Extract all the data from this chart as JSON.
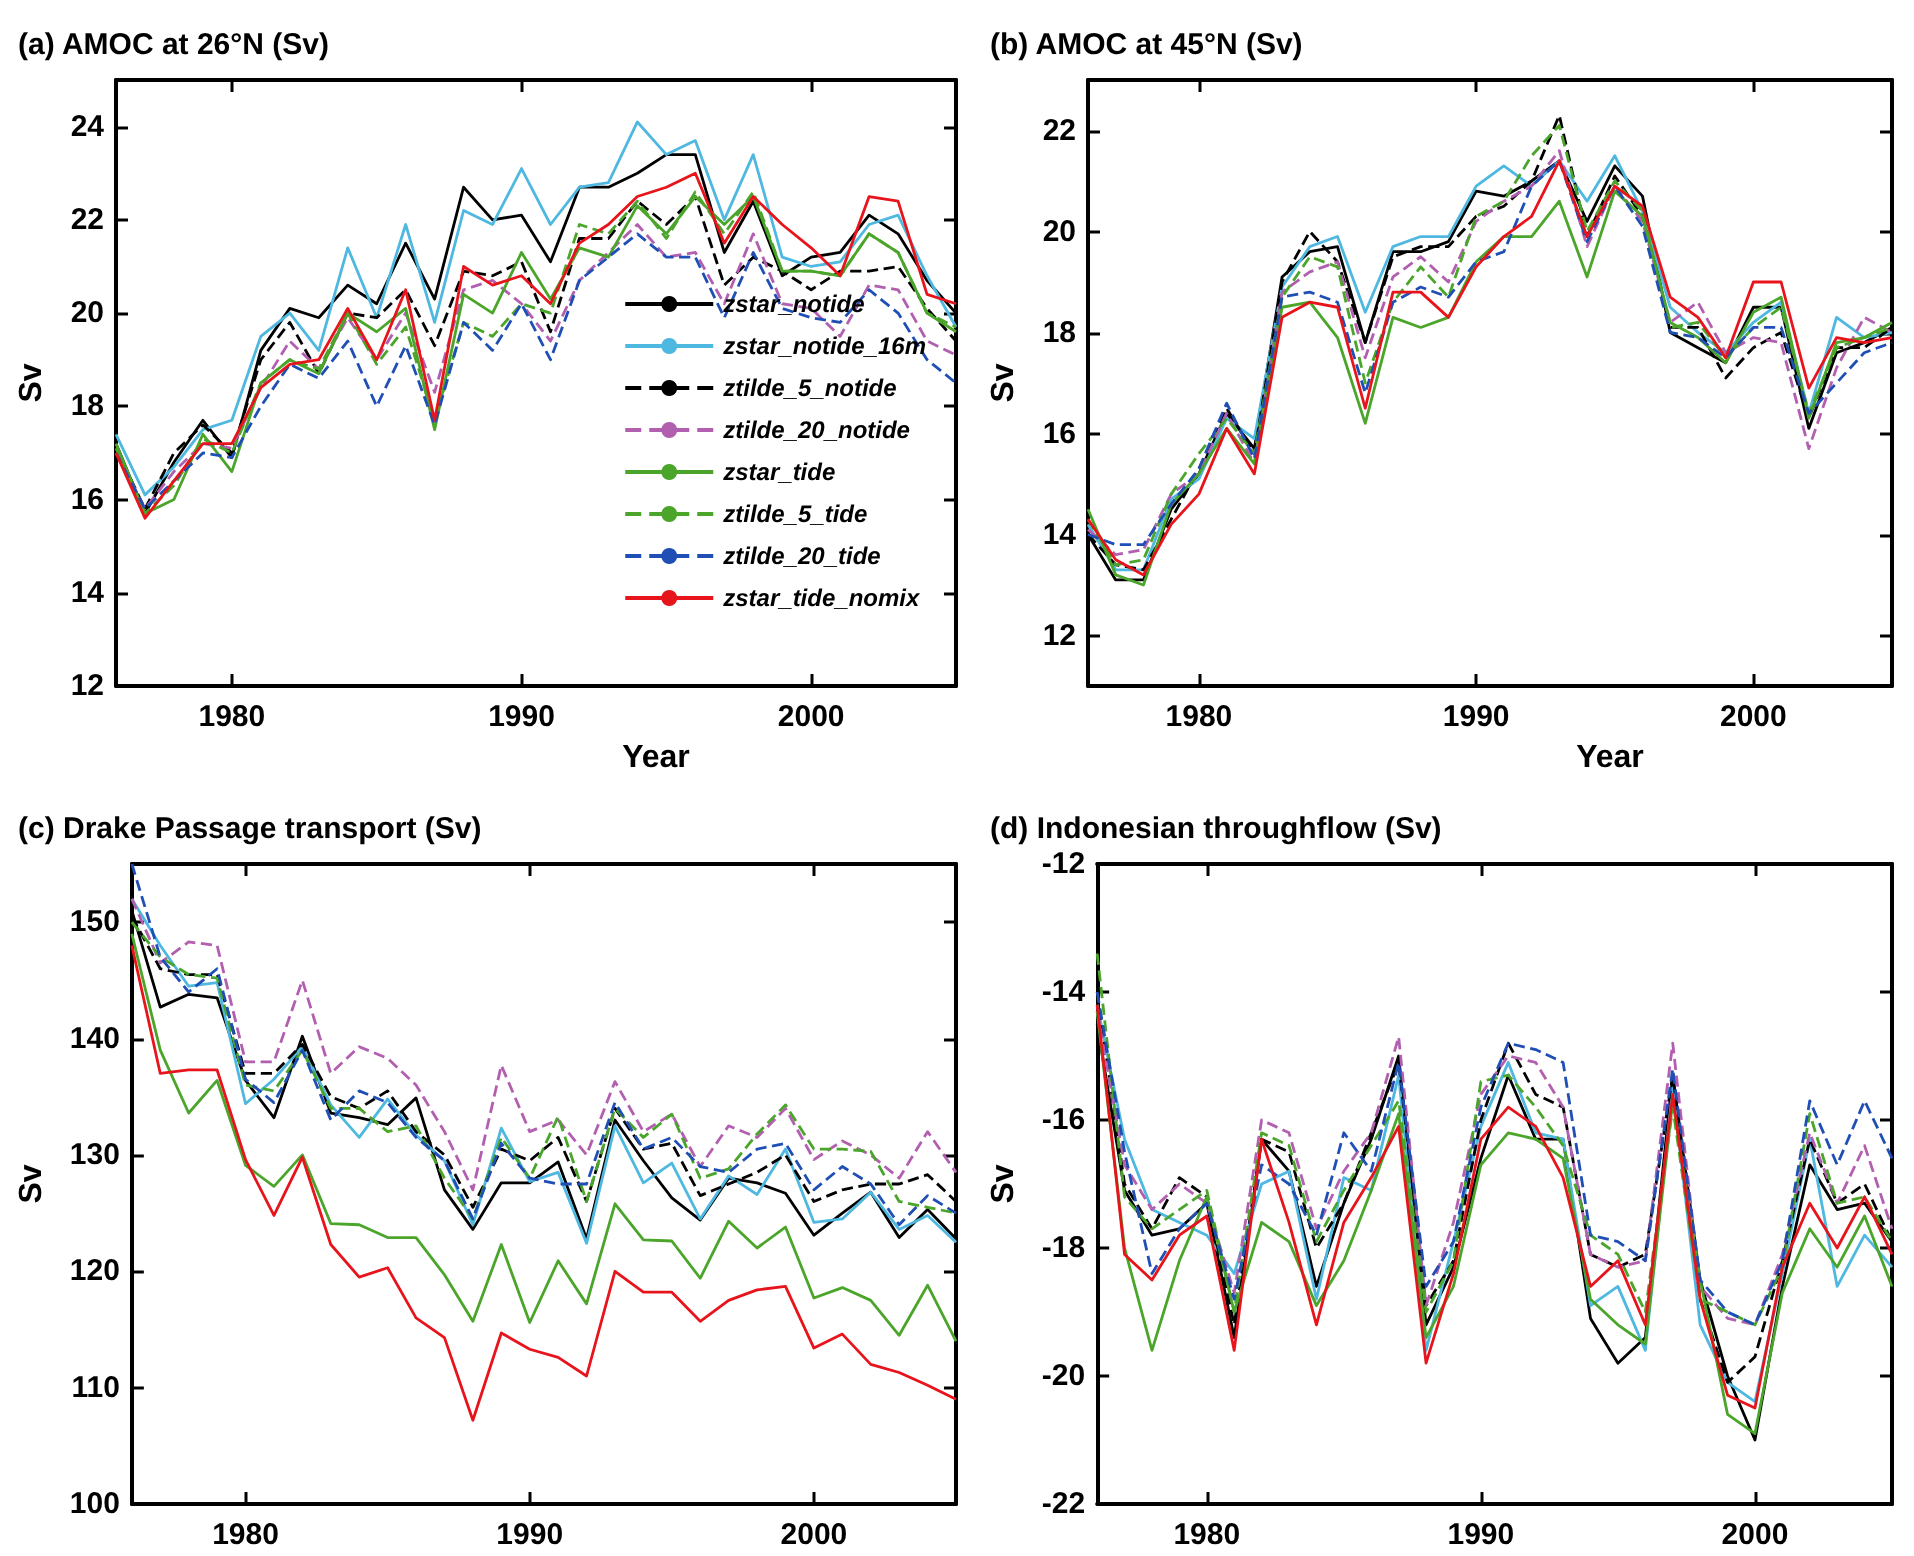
{
  "chart_data": [
    {
      "type": "line",
      "title": "(a) AMOC at 26°N (Sv)",
      "xlabel": "Year",
      "ylabel": "Sv",
      "x": [
        1976,
        1977,
        1978,
        1979,
        1980,
        1981,
        1982,
        1983,
        1984,
        1985,
        1986,
        1987,
        1988,
        1989,
        1990,
        1991,
        1992,
        1993,
        1994,
        1995,
        1996,
        1997,
        1998,
        1999,
        2000,
        2001,
        2002,
        2003,
        2004,
        2005
      ],
      "xlim": [
        1976,
        2005
      ],
      "xticks": [
        1980,
        1990,
        2000
      ],
      "ylim": [
        12,
        25
      ],
      "yticks": [
        12,
        14,
        16,
        18,
        20,
        22,
        24
      ],
      "marker": "none",
      "legend": "bottom right",
      "series": [
        {
          "name": "zstar_notide",
          "color": "#000000",
          "values": [
            17.2,
            15.7,
            16.8,
            17.7,
            16.9,
            19.2,
            20.1,
            19.9,
            20.6,
            20.2,
            21.5,
            20.3,
            22.7,
            22.0,
            22.1,
            21.1,
            22.7,
            22.7,
            23.0,
            23.4,
            23.4,
            21.3,
            22.4,
            20.8,
            21.2,
            21.3,
            22.1,
            21.7,
            20.7,
            20.0
          ]
        },
        {
          "name": "zstar_notide_16m",
          "color": "#4fb8e0",
          "values": [
            17.4,
            16.1,
            16.7,
            17.5,
            17.7,
            19.5,
            20.0,
            19.2,
            21.4,
            19.9,
            21.9,
            19.8,
            22.2,
            21.9,
            23.1,
            21.9,
            22.7,
            22.8,
            24.1,
            23.4,
            23.7,
            22.0,
            23.4,
            21.2,
            21.0,
            21.1,
            21.9,
            22.1,
            20.8,
            19.7
          ]
        },
        {
          "name": "ztilde_5_notide",
          "color": "#000000",
          "line_style": "dashed",
          "values": [
            17.1,
            15.8,
            17.0,
            17.6,
            17.0,
            19.0,
            19.8,
            18.7,
            20.0,
            19.9,
            20.5,
            19.3,
            20.9,
            20.8,
            21.1,
            19.6,
            21.6,
            21.6,
            22.4,
            21.9,
            22.5,
            20.6,
            21.2,
            20.9,
            20.5,
            20.9,
            20.9,
            21.0,
            20.1,
            19.4
          ]
        },
        {
          "name": "ztilde_20_notide",
          "color": "#b25fb0",
          "line_style": "dashed",
          "values": [
            17.0,
            15.8,
            16.6,
            17.2,
            17.1,
            18.4,
            19.4,
            18.8,
            19.9,
            19.0,
            20.0,
            18.3,
            20.5,
            20.7,
            20.2,
            19.4,
            20.7,
            21.3,
            21.9,
            21.2,
            21.3,
            20.2,
            21.7,
            20.2,
            20.1,
            19.5,
            20.6,
            20.5,
            19.4,
            19.1
          ]
        },
        {
          "name": "zstar_tide",
          "color": "#4aa52a",
          "values": [
            17.2,
            15.7,
            16.0,
            17.4,
            16.6,
            18.5,
            19.0,
            18.7,
            20.0,
            19.6,
            20.1,
            17.5,
            20.4,
            20.0,
            21.3,
            20.3,
            21.4,
            21.2,
            22.3,
            21.7,
            22.5,
            21.9,
            22.5,
            20.9,
            20.9,
            20.8,
            21.7,
            21.3,
            20.0,
            19.6
          ]
        },
        {
          "name": "ztilde_5_tide",
          "color": "#4aa52a",
          "line_style": "dashed",
          "values": [
            17.1,
            15.7,
            16.3,
            17.3,
            17.0,
            18.5,
            19.0,
            18.8,
            20.0,
            18.9,
            19.7,
            17.7,
            19.8,
            19.5,
            20.2,
            20.0,
            21.9,
            21.7,
            22.4,
            21.6,
            22.6,
            21.7,
            22.6,
            20.9,
            20.9,
            20.8,
            21.7,
            21.3,
            20.0,
            19.7
          ]
        },
        {
          "name": "ztilde_20_tide",
          "color": "#1f4fb5",
          "line_style": "dashed",
          "values": [
            17.0,
            15.8,
            16.4,
            17.0,
            16.9,
            18.0,
            18.9,
            18.6,
            19.4,
            18.0,
            19.3,
            17.6,
            19.8,
            19.2,
            20.2,
            19.0,
            20.7,
            21.2,
            21.7,
            21.2,
            21.2,
            19.9,
            21.3,
            20.1,
            19.9,
            19.8,
            20.5,
            20.0,
            19.0,
            18.5
          ]
        },
        {
          "name": "zstar_tide_nomix",
          "color": "#e8141c",
          "values": [
            17.0,
            15.6,
            16.4,
            17.2,
            17.2,
            18.4,
            18.9,
            19.0,
            20.1,
            19.0,
            20.5,
            17.7,
            21.0,
            20.6,
            20.8,
            20.2,
            21.5,
            21.9,
            22.5,
            22.7,
            23.0,
            21.5,
            22.5,
            21.9,
            21.4,
            20.8,
            22.5,
            22.4,
            20.4,
            20.2
          ]
        }
      ]
    },
    {
      "type": "line",
      "title": "(b) AMOC at 45°N (Sv)",
      "xlabel": "Year",
      "ylabel": "Sv",
      "x": [
        1976,
        1977,
        1978,
        1979,
        1980,
        1981,
        1982,
        1983,
        1984,
        1985,
        1986,
        1987,
        1988,
        1989,
        1990,
        1991,
        1992,
        1993,
        1994,
        1995,
        1996,
        1997,
        1998,
        1999,
        2000,
        2001,
        2002,
        2003,
        2004,
        2005
      ],
      "xlim": [
        1976,
        2005
      ],
      "xticks": [
        1980,
        1990,
        2000
      ],
      "ylim": [
        11,
        23
      ],
      "yticks": [
        12,
        14,
        16,
        18,
        20,
        22
      ],
      "marker": "none",
      "series": [
        {
          "color": "#000000",
          "values": [
            14.0,
            13.1,
            13.1,
            14.5,
            15.2,
            16.4,
            15.7,
            19.1,
            19.6,
            19.7,
            17.8,
            19.6,
            19.6,
            19.8,
            20.8,
            20.7,
            21.0,
            21.4,
            20.2,
            21.3,
            20.7,
            18.0,
            17.7,
            17.4,
            18.5,
            18.5,
            16.1,
            17.6,
            17.8,
            18.1
          ]
        },
        {
          "color": "#4fb8e0",
          "values": [
            14.2,
            13.3,
            13.3,
            14.7,
            15.1,
            16.3,
            15.9,
            18.9,
            19.7,
            19.9,
            18.4,
            19.7,
            19.9,
            19.9,
            20.9,
            21.3,
            20.9,
            21.4,
            20.6,
            21.5,
            20.4,
            18.5,
            18.0,
            17.6,
            18.2,
            18.6,
            16.4,
            18.3,
            17.9,
            18.0
          ]
        },
        {
          "color": "#000000",
          "line_style": "dashed",
          "values": [
            14.0,
            13.4,
            13.3,
            14.3,
            15.3,
            16.5,
            15.6,
            19.0,
            20.0,
            19.4,
            17.8,
            19.5,
            19.7,
            19.7,
            20.3,
            20.5,
            21.0,
            22.3,
            19.9,
            21.1,
            20.3,
            18.1,
            18.1,
            17.1,
            17.7,
            18.0,
            16.3,
            17.7,
            17.7,
            18.1
          ]
        },
        {
          "color": "#b25fb0",
          "line_style": "dashed",
          "values": [
            14.1,
            13.6,
            13.7,
            14.8,
            15.2,
            16.4,
            15.4,
            18.8,
            19.2,
            19.4,
            17.5,
            19.1,
            19.5,
            19.0,
            20.2,
            20.6,
            20.9,
            21.6,
            19.7,
            20.9,
            20.2,
            18.2,
            18.6,
            17.6,
            17.9,
            17.8,
            15.7,
            17.3,
            18.3,
            18.0
          ]
        },
        {
          "color": "#4aa52a",
          "values": [
            14.5,
            13.2,
            13.0,
            14.6,
            15.2,
            16.1,
            15.4,
            18.5,
            18.6,
            17.9,
            16.2,
            18.3,
            18.1,
            18.3,
            19.4,
            19.9,
            19.9,
            20.6,
            19.1,
            20.8,
            20.3,
            18.2,
            17.9,
            17.4,
            18.4,
            18.7,
            16.3,
            17.8,
            17.9,
            18.2
          ]
        },
        {
          "color": "#4aa52a",
          "line_style": "dashed",
          "values": [
            14.3,
            13.4,
            13.5,
            14.8,
            15.6,
            16.3,
            15.6,
            18.7,
            19.5,
            19.3,
            17.0,
            18.6,
            19.3,
            18.7,
            20.3,
            20.6,
            21.5,
            22.1,
            20.0,
            21.0,
            20.4,
            18.1,
            18.2,
            17.5,
            18.1,
            18.5,
            16.4,
            17.7,
            17.9,
            18.1
          ]
        },
        {
          "color": "#1f4fb5",
          "line_style": "dashed",
          "values": [
            14.0,
            13.8,
            13.8,
            14.6,
            15.3,
            16.6,
            15.5,
            18.7,
            18.8,
            18.6,
            16.8,
            18.6,
            18.9,
            18.7,
            19.4,
            19.6,
            20.9,
            21.4,
            19.8,
            20.9,
            20.1,
            18.0,
            17.9,
            17.5,
            18.1,
            18.1,
            16.4,
            17.0,
            17.6,
            17.8
          ]
        },
        {
          "color": "#e8141c",
          "values": [
            14.3,
            13.5,
            13.2,
            14.2,
            14.8,
            16.1,
            15.2,
            18.3,
            18.6,
            18.5,
            16.5,
            18.8,
            18.8,
            18.3,
            19.3,
            19.9,
            20.3,
            21.4,
            19.9,
            20.9,
            20.5,
            18.7,
            18.3,
            17.5,
            19.0,
            19.0,
            16.9,
            17.9,
            17.8,
            17.9
          ]
        }
      ]
    },
    {
      "type": "line",
      "title": "(c) Drake Passage transport (Sv)",
      "ylabel": "Sv",
      "x": [
        1976,
        1977,
        1978,
        1979,
        1980,
        1981,
        1982,
        1983,
        1984,
        1985,
        1986,
        1987,
        1988,
        1989,
        1990,
        1991,
        1992,
        1993,
        1994,
        1995,
        1996,
        1997,
        1998,
        1999,
        2000,
        2001,
        2002,
        2003,
        2004,
        2005
      ],
      "xlim": [
        1976,
        2005
      ],
      "xticks": [
        1980,
        1990,
        2000
      ],
      "ylim": [
        100,
        155
      ],
      "yticks": [
        100,
        110,
        120,
        130,
        140,
        150
      ],
      "marker": "none",
      "series": [
        {
          "color": "#000000",
          "values": [
            151,
            142.7,
            143.8,
            143.5,
            136.4,
            133.2,
            140.2,
            133.6,
            133.2,
            132.6,
            134.9,
            127,
            123.6,
            127.6,
            127.6,
            129.4,
            122.8,
            133,
            129.5,
            126.3,
            124.4,
            128,
            127.6,
            126.7,
            123.1,
            125,
            126.8,
            122.9,
            125.3,
            122.8
          ]
        },
        {
          "color": "#4fb8e0",
          "values": [
            152,
            148,
            144.5,
            144.8,
            134.4,
            136.5,
            139.3,
            134.3,
            131.5,
            134.8,
            131.7,
            129.5,
            124,
            132.3,
            127.7,
            128.5,
            122.4,
            132.5,
            127.6,
            129.3,
            124.5,
            128.2,
            126.6,
            130.5,
            124.2,
            124.5,
            126.8,
            123.6,
            124.8,
            122.5
          ]
        },
        {
          "color": "#000000",
          "line_style": "dashed",
          "values": [
            150.5,
            146,
            145.5,
            145.5,
            137,
            137,
            139.5,
            135,
            134,
            135.5,
            132,
            130,
            125.5,
            130.5,
            129.5,
            131.5,
            126,
            134,
            130.5,
            131,
            126.5,
            127.5,
            128.5,
            130,
            126,
            127,
            127.5,
            127.5,
            128.3,
            126
          ]
        },
        {
          "color": "#b25fb0",
          "line_style": "dashed",
          "values": [
            152,
            146.5,
            148.3,
            148,
            138,
            138,
            145,
            137,
            139.3,
            138.3,
            136,
            132,
            127,
            137.7,
            132,
            133,
            130,
            136.3,
            132,
            133.5,
            129,
            132.5,
            131.5,
            134,
            129.6,
            131.2,
            130,
            128,
            132,
            128.5
          ]
        },
        {
          "color": "#4aa52a",
          "values": [
            149,
            139,
            133.6,
            136.4,
            129.1,
            127.3,
            130,
            124.1,
            124,
            122.9,
            122.9,
            119.7,
            115.7,
            122.3,
            115.6,
            120.9,
            117.2,
            125.8,
            122.7,
            122.6,
            119.4,
            124.3,
            122,
            123.8,
            117.7,
            118.6,
            117.5,
            114.5,
            118.8,
            114
          ]
        },
        {
          "color": "#4aa52a",
          "line_style": "dashed",
          "values": [
            150,
            147,
            145.5,
            145.2,
            136,
            135.5,
            139,
            134,
            134,
            132,
            132.5,
            128,
            124.5,
            131.5,
            128,
            133.3,
            126,
            134,
            131.5,
            133.5,
            128,
            128.8,
            131.8,
            134.3,
            130.5,
            130.5,
            130.3,
            126,
            125.5,
            125
          ]
        },
        {
          "color": "#1f4fb5",
          "line_style": "dashed",
          "values": [
            155,
            147,
            144,
            146,
            136.5,
            134.5,
            139,
            133,
            135.5,
            134.5,
            131.5,
            129.5,
            124.5,
            131,
            128,
            127.5,
            127.5,
            134.5,
            130.5,
            131.5,
            129,
            128.5,
            130.5,
            131,
            127,
            129,
            127.5,
            124,
            126.5,
            125
          ]
        },
        {
          "color": "#e8141c",
          "values": [
            148,
            137,
            137.3,
            137.3,
            129.6,
            124.8,
            129.8,
            122.3,
            119.5,
            120.3,
            116,
            114.3,
            107.2,
            114.7,
            113.3,
            112.6,
            111,
            120,
            118.2,
            118.2,
            115.7,
            117.5,
            118.4,
            118.7,
            113.4,
            114.6,
            112,
            111.3,
            110.2,
            109
          ]
        }
      ]
    },
    {
      "type": "line",
      "title": "(d) Indonesian throughflow (Sv)",
      "ylabel": "Sv",
      "x": [
        1976,
        1977,
        1978,
        1979,
        1980,
        1981,
        1982,
        1983,
        1984,
        1985,
        1986,
        1987,
        1988,
        1989,
        1990,
        1991,
        1992,
        1993,
        1994,
        1995,
        1996,
        1997,
        1998,
        1999,
        2000,
        2001,
        2002,
        2003,
        2004,
        2005
      ],
      "xlim": [
        1976,
        2005
      ],
      "xticks": [
        1980,
        1990,
        2000
      ],
      "ylim": [
        -22,
        -12
      ],
      "yticks": [
        -22,
        -20,
        -18,
        -16,
        -14,
        -12
      ],
      "marker": "none",
      "series": [
        {
          "color": "#000000",
          "values": [
            -14.5,
            -17.1,
            -17.8,
            -17.7,
            -17.3,
            -19.4,
            -16.3,
            -16.8,
            -18.6,
            -17.3,
            -16.3,
            -15.0,
            -19.2,
            -18.3,
            -16.6,
            -15.3,
            -16.3,
            -16.3,
            -19.1,
            -19.8,
            -19.4,
            -15.3,
            -18.5,
            -20.0,
            -21.0,
            -18.6,
            -16.7,
            -17.4,
            -17.3,
            -17.9
          ]
        },
        {
          "color": "#4fb8e0",
          "values": [
            -14.2,
            -16.3,
            -17.4,
            -17.6,
            -17.8,
            -18.4,
            -17.0,
            -16.8,
            -18.8,
            -16.9,
            -17.1,
            -15.3,
            -19.6,
            -17.9,
            -16.1,
            -15.1,
            -16.2,
            -16.3,
            -18.9,
            -18.6,
            -19.6,
            -15.5,
            -19.2,
            -20.1,
            -20.4,
            -18.4,
            -16.3,
            -18.6,
            -17.8,
            -18.3
          ]
        },
        {
          "color": "#000000",
          "line_style": "dashed",
          "values": [
            -14.0,
            -17.0,
            -17.7,
            -16.9,
            -17.2,
            -19.2,
            -16.3,
            -16.5,
            -18.0,
            -17.3,
            -16.2,
            -15.1,
            -18.9,
            -18.2,
            -16.0,
            -14.8,
            -15.6,
            -15.8,
            -18.1,
            -18.3,
            -18.1,
            -15.3,
            -18.8,
            -20.1,
            -19.7,
            -18.2,
            -16.3,
            -17.3,
            -17.0,
            -17.9
          ]
        },
        {
          "color": "#b25fb0",
          "line_style": "dashed",
          "values": [
            -14.3,
            -16.7,
            -17.4,
            -17.0,
            -17.3,
            -18.7,
            -16.0,
            -16.2,
            -17.7,
            -16.8,
            -16.2,
            -14.7,
            -18.9,
            -17.6,
            -15.6,
            -15.0,
            -15.1,
            -15.8,
            -18.1,
            -18.3,
            -18.2,
            -14.8,
            -18.6,
            -19.1,
            -19.2,
            -18.1,
            -16.2,
            -17.3,
            -16.4,
            -17.7
          ]
        },
        {
          "color": "#4aa52a",
          "values": [
            -14.3,
            -18.0,
            -19.6,
            -18.2,
            -17.2,
            -19.0,
            -17.6,
            -17.9,
            -18.9,
            -18.2,
            -17.1,
            -15.9,
            -19.4,
            -18.6,
            -16.7,
            -16.2,
            -16.3,
            -16.6,
            -18.8,
            -19.2,
            -19.5,
            -15.7,
            -18.5,
            -20.6,
            -20.9,
            -18.7,
            -17.7,
            -18.3,
            -17.5,
            -18.6
          ]
        },
        {
          "color": "#4aa52a",
          "line_style": "dashed",
          "values": [
            -13.4,
            -17.2,
            -17.7,
            -17.4,
            -17.1,
            -19.0,
            -16.2,
            -16.4,
            -17.9,
            -17.1,
            -16.4,
            -15.7,
            -19.0,
            -18.2,
            -15.4,
            -15.3,
            -15.8,
            -16.4,
            -17.8,
            -18.1,
            -19.0,
            -15.8,
            -18.8,
            -19.0,
            -19.2,
            -18.3,
            -15.9,
            -17.3,
            -17.2,
            -17.9
          ]
        },
        {
          "color": "#1f4fb5",
          "line_style": "dashed",
          "values": [
            -14.0,
            -16.5,
            -18.4,
            -17.7,
            -17.3,
            -18.8,
            -16.7,
            -17.0,
            -17.8,
            -16.2,
            -16.8,
            -15.1,
            -18.6,
            -17.9,
            -15.8,
            -14.8,
            -14.9,
            -15.1,
            -17.8,
            -17.9,
            -18.2,
            -15.2,
            -18.5,
            -19.0,
            -19.2,
            -18.2,
            -15.7,
            -16.7,
            -15.7,
            -16.6
          ]
        },
        {
          "color": "#e8141c",
          "values": [
            -14.2,
            -18.1,
            -18.5,
            -17.8,
            -17.5,
            -19.6,
            -16.3,
            -17.6,
            -19.2,
            -17.6,
            -16.9,
            -16.1,
            -19.8,
            -18.4,
            -16.3,
            -15.8,
            -16.1,
            -16.9,
            -18.6,
            -18.2,
            -19.2,
            -15.6,
            -18.8,
            -20.3,
            -20.5,
            -18.3,
            -17.3,
            -18.0,
            -17.2,
            -18.1
          ]
        }
      ]
    }
  ]
}
